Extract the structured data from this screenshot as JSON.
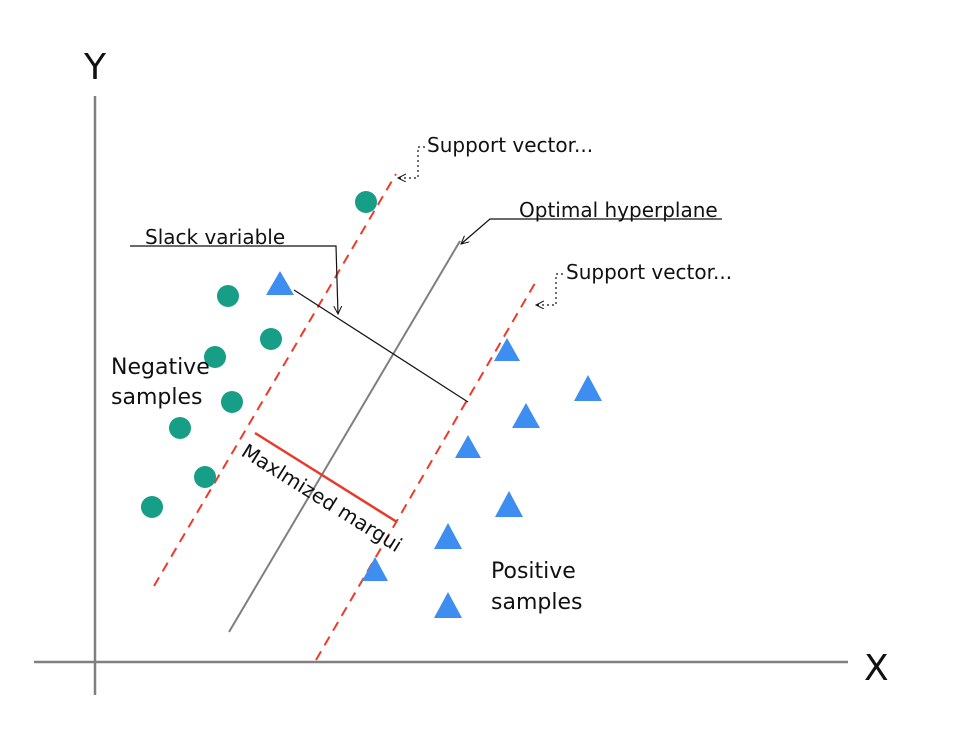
{
  "axes": {
    "x_label": "X",
    "y_label": "Y"
  },
  "annotations": {
    "support_vector_top": "Support vector...",
    "support_vector_bottom": "Support vector...",
    "optimal_hyperplane": "Optimal hyperplane",
    "slack_variable": "Slack variable",
    "maximized_margin": "Maxlmized margui",
    "negative_samples_line1": "Negative",
    "negative_samples_line2": "samples",
    "positive_samples_line1": "Positive",
    "positive_samples_line2": "samples"
  },
  "colors": {
    "axis": "#808080",
    "hyperplane": "#7f7f7f",
    "support_line": "#ee3a2a",
    "margin": "#e8392b",
    "negative_marker": "#169e86",
    "positive_marker": "#3d8ef0",
    "annotation_line": "#111111"
  }
}
